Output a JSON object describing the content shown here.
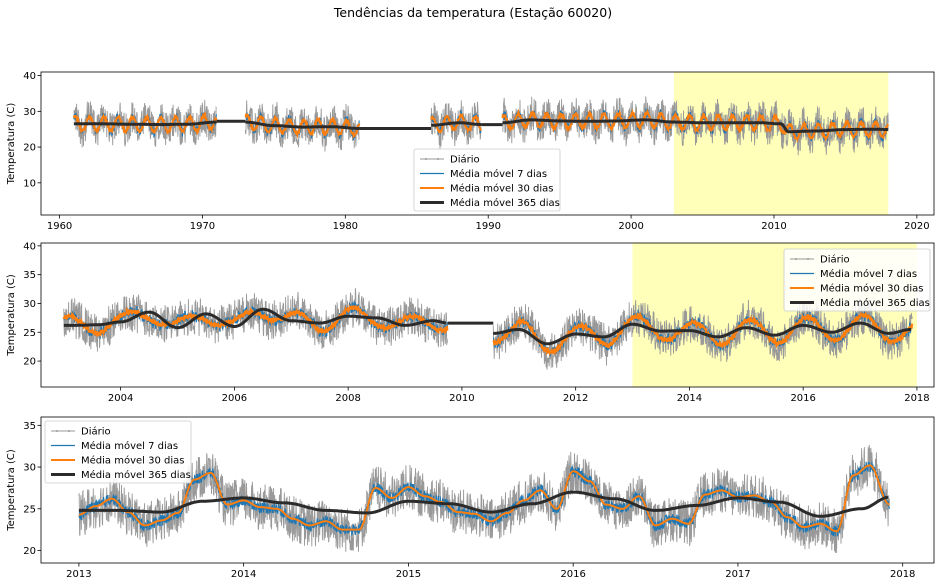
{
  "figure": {
    "suptitle": "Tendências da temperatura (Estação 60020)"
  },
  "legend_labels": [
    "Diário",
    "Média móvel 7 dias",
    "Média móvel 30 dias",
    "Média móvel 365 dias"
  ],
  "colors": {
    "daily": "#999999",
    "ma7": "#1f77b4",
    "ma30": "#ff7f0e",
    "ma365": "#2b2b2b",
    "highlight": "#ffff80"
  },
  "chart_data": [
    {
      "type": "line",
      "ylabel": "Temperatura (C)",
      "x_unit": "year",
      "xlim": [
        1958.7,
        2021.2
      ],
      "ylim": [
        1,
        41
      ],
      "xticks": [
        1960,
        1970,
        1980,
        1990,
        2000,
        2010,
        2020
      ],
      "yticks": [
        10,
        20,
        30,
        40
      ],
      "highlight_x": [
        2003.0,
        2018.0
      ],
      "legend_loc": "lower-center",
      "segments": [
        [
          1961.0,
          1971.0
        ],
        [
          1973.0,
          1981.0
        ],
        [
          1986.0,
          1989.5
        ],
        [
          1991.0,
          2018.0
        ]
      ],
      "gaps_flat": [
        {
          "x": [
            1971.0,
            1973.0
          ],
          "y": 27.2
        },
        {
          "x": [
            1981.0,
            1986.0
          ],
          "y": 25.2
        },
        {
          "x": [
            1989.5,
            1991.0
          ],
          "y": 26.3
        }
      ],
      "ma365_knots": {
        "x": [
          1961,
          1963,
          1965,
          1967,
          1969,
          1971,
          1973,
          1975,
          1977,
          1979,
          1981,
          1986,
          1988,
          1989.5,
          1991,
          1993,
          1995,
          1997,
          1999,
          2001,
          2003,
          2005,
          2007,
          2009,
          2010.5,
          2011,
          2013,
          2015,
          2017,
          2018
        ],
        "y": [
          26.5,
          26.5,
          26.4,
          26.3,
          26.4,
          27.0,
          27.0,
          26.0,
          25.6,
          25.7,
          25.2,
          26.1,
          26.8,
          26.3,
          26.8,
          27.6,
          27.3,
          27.2,
          27.3,
          27.6,
          27.0,
          26.8,
          26.8,
          26.8,
          26.5,
          24.3,
          24.5,
          24.9,
          25.0,
          24.9
        ]
      },
      "season_amplitude": 2.0,
      "daily_noise": 4.5
    },
    {
      "type": "line",
      "ylabel": "Temperatura (C)",
      "x_unit": "year",
      "xlim": [
        2002.6,
        2018.3
      ],
      "ylim": [
        15.5,
        40.5
      ],
      "xticks": [
        2004,
        2006,
        2008,
        2010,
        2012,
        2014,
        2016,
        2018
      ],
      "yticks": [
        20,
        25,
        30,
        35,
        40
      ],
      "highlight_x": [
        2013.0,
        2018.0
      ],
      "legend_loc": "upper-right",
      "segments": [
        [
          2003.0,
          2009.75
        ],
        [
          2010.55,
          2017.92
        ]
      ],
      "gaps_flat": [
        {
          "x": [
            2009.75,
            2010.55
          ],
          "y": 26.6
        }
      ],
      "ma365_knots": {
        "x": [
          2003.2,
          2003.6,
          2004.0,
          2004.5,
          2005.0,
          2005.5,
          2006.0,
          2006.5,
          2007.0,
          2007.5,
          2008.0,
          2008.5,
          2009.0,
          2009.5,
          2009.75,
          2010.55,
          2011.0,
          2011.5,
          2012.0,
          2012.5,
          2013.0,
          2013.5,
          2014.0,
          2014.5,
          2015.0,
          2015.5,
          2016.0,
          2016.5,
          2017.0,
          2017.5,
          2017.9
        ],
        "y": [
          26.2,
          26.3,
          26.8,
          28.5,
          25.8,
          28.2,
          26.0,
          29.0,
          27.0,
          26.6,
          27.8,
          27.5,
          26.2,
          27.0,
          26.6,
          24.8,
          25.5,
          23.0,
          24.7,
          24.2,
          26.4,
          25.2,
          25.3,
          24.2,
          25.8,
          24.5,
          26.2,
          25.0,
          26.6,
          24.8,
          25.5
        ]
      },
      "season_amplitude": 1.5,
      "daily_noise": 3.0
    },
    {
      "type": "line",
      "ylabel": "Temperatura (C)",
      "x_unit": "year",
      "xlim": [
        2012.77,
        2018.19
      ],
      "ylim": [
        18.5,
        36
      ],
      "xticks": [
        2013,
        2014,
        2015,
        2016,
        2017,
        2018
      ],
      "yticks": [
        20,
        25,
        30,
        35
      ],
      "legend_loc": "upper-left",
      "segments": [
        [
          2013.0,
          2017.92
        ]
      ],
      "gaps_flat": [],
      "ma365_knots": {
        "x": [
          2013.25,
          2013.5,
          2013.75,
          2014.0,
          2014.25,
          2014.5,
          2014.75,
          2015.0,
          2015.25,
          2015.5,
          2015.75,
          2016.0,
          2016.25,
          2016.5,
          2016.75,
          2017.0,
          2017.25,
          2017.5,
          2017.75,
          2017.92
        ],
        "y": [
          24.8,
          24.6,
          25.9,
          26.3,
          25.7,
          24.8,
          24.5,
          25.9,
          25.6,
          24.6,
          25.6,
          27.0,
          26.2,
          24.8,
          25.4,
          26.3,
          25.8,
          24.1,
          25.0,
          26.4
        ]
      },
      "ma30_knots": {
        "x": [
          2013.0,
          2013.1,
          2013.2,
          2013.3,
          2013.4,
          2013.5,
          2013.6,
          2013.7,
          2013.8,
          2013.9,
          2014.0,
          2014.1,
          2014.2,
          2014.3,
          2014.4,
          2014.5,
          2014.6,
          2014.7,
          2014.8,
          2014.9,
          2015.0,
          2015.1,
          2015.2,
          2015.3,
          2015.4,
          2015.5,
          2015.6,
          2015.7,
          2015.8,
          2015.9,
          2016.0,
          2016.1,
          2016.2,
          2016.3,
          2016.4,
          2016.5,
          2016.6,
          2016.7,
          2016.8,
          2016.9,
          2017.0,
          2017.1,
          2017.2,
          2017.3,
          2017.4,
          2017.5,
          2017.6,
          2017.7,
          2017.8,
          2017.92
        ],
        "y": [
          24.3,
          25.3,
          26.2,
          24.6,
          23.0,
          23.6,
          24.5,
          28.5,
          29.3,
          25.5,
          26.0,
          25.2,
          25.0,
          23.8,
          23.0,
          23.5,
          22.5,
          22.5,
          27.5,
          26.3,
          27.6,
          26.5,
          25.8,
          24.6,
          24.4,
          23.5,
          24.5,
          26.0,
          27.2,
          25.0,
          29.5,
          28.3,
          25.5,
          25.0,
          26.5,
          23.0,
          23.8,
          23.2,
          26.7,
          27.2,
          26.4,
          26.6,
          25.8,
          24.0,
          22.8,
          23.2,
          22.3,
          29.0,
          30.2,
          25.5
        ]
      },
      "daily_noise": 2.5
    }
  ]
}
